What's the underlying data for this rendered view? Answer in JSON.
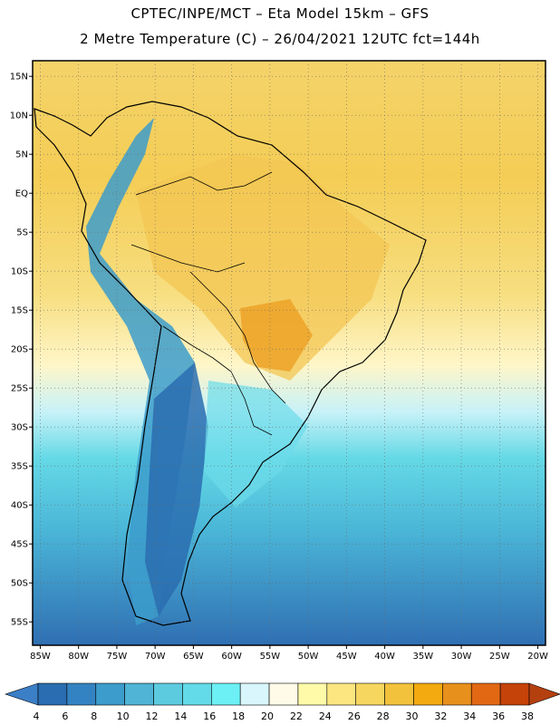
{
  "header": {
    "title_line1": "CPTEC/INPE/MCT –  Eta Model 15km – GFS",
    "title_line2": "2 Metre Temperature (C) – 26/04/2021 12UTC fct=144h"
  },
  "map": {
    "lat_labels": [
      "15N",
      "10N",
      "5N",
      "EQ",
      "5S",
      "10S",
      "15S",
      "20S",
      "25S",
      "30S",
      "35S",
      "40S",
      "45S",
      "50S",
      "55S"
    ],
    "lon_labels": [
      "85W",
      "80W",
      "75W",
      "70W",
      "65W",
      "60W",
      "55W",
      "50W",
      "45W",
      "40W",
      "35W",
      "30W",
      "25W",
      "20W"
    ],
    "lat_values": [
      15,
      10,
      5,
      0,
      -5,
      -10,
      -15,
      -20,
      -25,
      -30,
      -35,
      -40,
      -45,
      -50,
      -55
    ],
    "lon_values": [
      -85,
      -80,
      -75,
      -70,
      -65,
      -60,
      -55,
      -50,
      -45,
      -40,
      -35,
      -30,
      -25,
      -20
    ],
    "lat_range": [
      -58,
      17
    ],
    "lon_range": [
      -86,
      -19
    ]
  },
  "colorbar": {
    "labels": [
      "4",
      "6",
      "8",
      "10",
      "12",
      "14",
      "16",
      "18",
      "20",
      "22",
      "24",
      "26",
      "28",
      "30",
      "32",
      "34",
      "36",
      "38"
    ],
    "colors": [
      "#2a6db0",
      "#3383c2",
      "#3c9ccb",
      "#4fb4d6",
      "#5ccbe0",
      "#63dbe8",
      "#6cf0f5",
      "#d8f6fb",
      "#fffbe8",
      "#fffaa8",
      "#fbe680",
      "#f7d660",
      "#f2c23c",
      "#f2aa10",
      "#e8901c",
      "#e26814",
      "#c54208"
    ],
    "under_color": "#3b7fc7",
    "over_color": "#b5400f"
  }
}
